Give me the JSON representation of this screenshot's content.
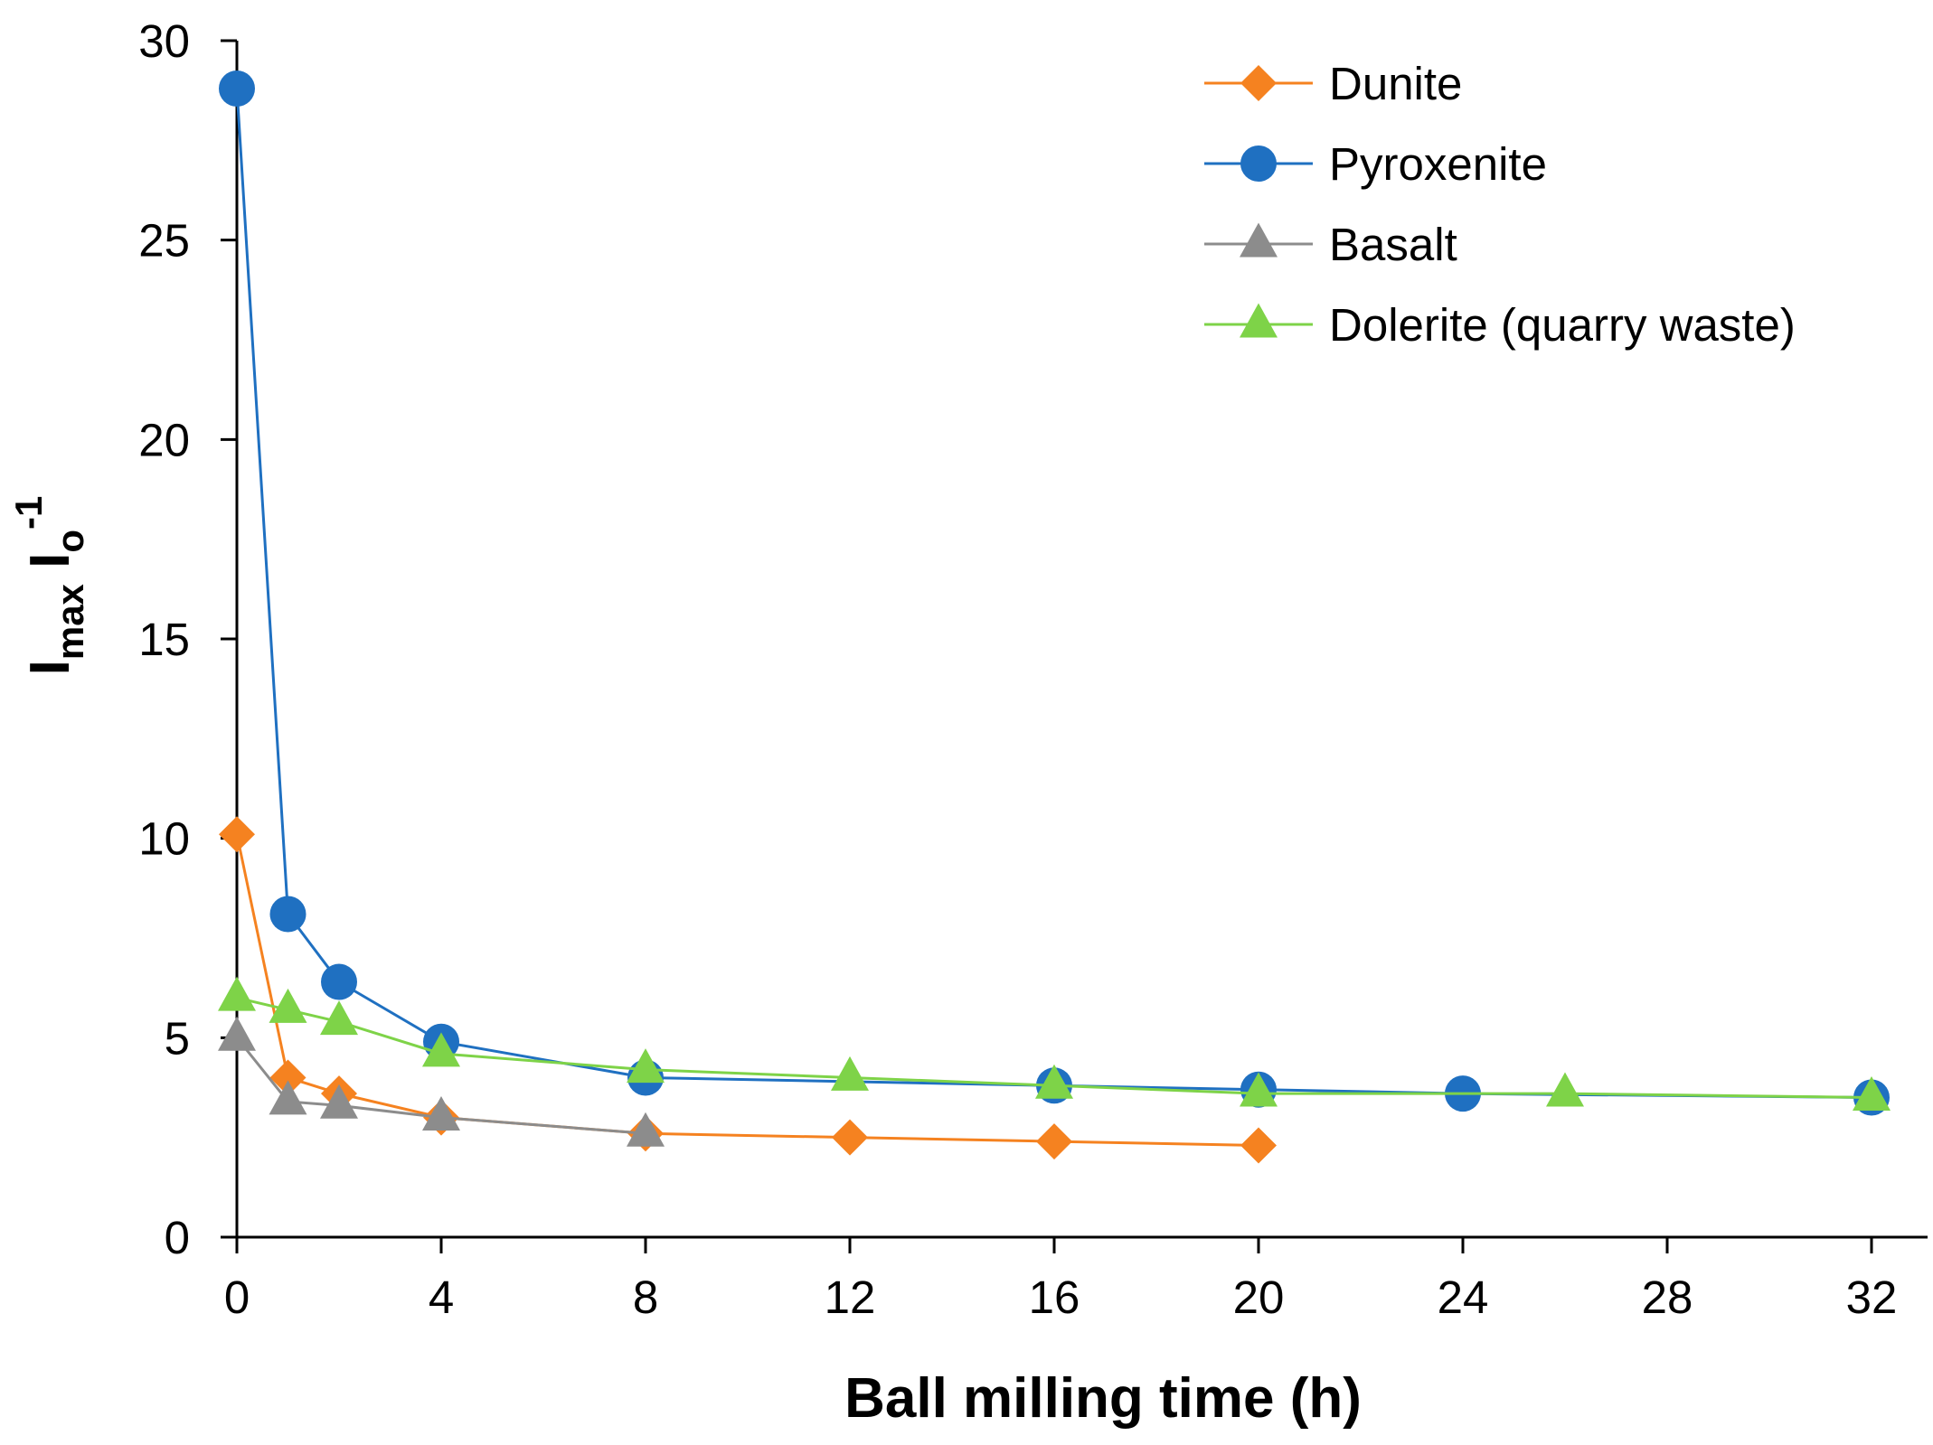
{
  "chart_data": {
    "type": "line",
    "title": "",
    "xlabel": "Ball milling time (h)",
    "ylabel_main": "I",
    "ylabel_sub1": "max",
    "ylabel_mid": " I",
    "ylabel_sub2": "o",
    "ylabel_sup": "-1",
    "xlim": [
      0,
      32
    ],
    "ylim": [
      0,
      30
    ],
    "xticks": [
      0,
      4,
      8,
      12,
      16,
      20,
      24,
      28,
      32
    ],
    "yticks": [
      0,
      5,
      10,
      15,
      20,
      25,
      30
    ],
    "legend_position": "top-right",
    "series": [
      {
        "name": "Dunite",
        "color": "#F58220",
        "marker": "diamond",
        "x": [
          0,
          1,
          2,
          4,
          8,
          12,
          16,
          20
        ],
        "y": [
          10.1,
          4.0,
          3.6,
          3.0,
          2.6,
          2.5,
          2.4,
          2.3
        ]
      },
      {
        "name": "Pyroxenite",
        "color": "#1F70C1",
        "marker": "circle",
        "x": [
          0,
          1,
          2,
          4,
          8,
          16,
          20,
          24,
          32
        ],
        "y": [
          28.8,
          8.1,
          6.4,
          4.9,
          4.0,
          3.8,
          3.7,
          3.6,
          3.5
        ]
      },
      {
        "name": "Basalt",
        "color": "#8C8C8C",
        "marker": "triangle",
        "x": [
          0,
          1,
          2,
          4,
          8
        ],
        "y": [
          5.0,
          3.4,
          3.3,
          3.0,
          2.6
        ]
      },
      {
        "name": "Dolerite (quarry waste)",
        "color": "#7ED348",
        "marker": "triangle",
        "x": [
          0,
          1,
          2,
          4,
          8,
          12,
          16,
          20,
          26,
          32
        ],
        "y": [
          6.0,
          5.7,
          5.4,
          4.6,
          4.2,
          4.0,
          3.8,
          3.6,
          3.6,
          3.5
        ]
      }
    ]
  }
}
